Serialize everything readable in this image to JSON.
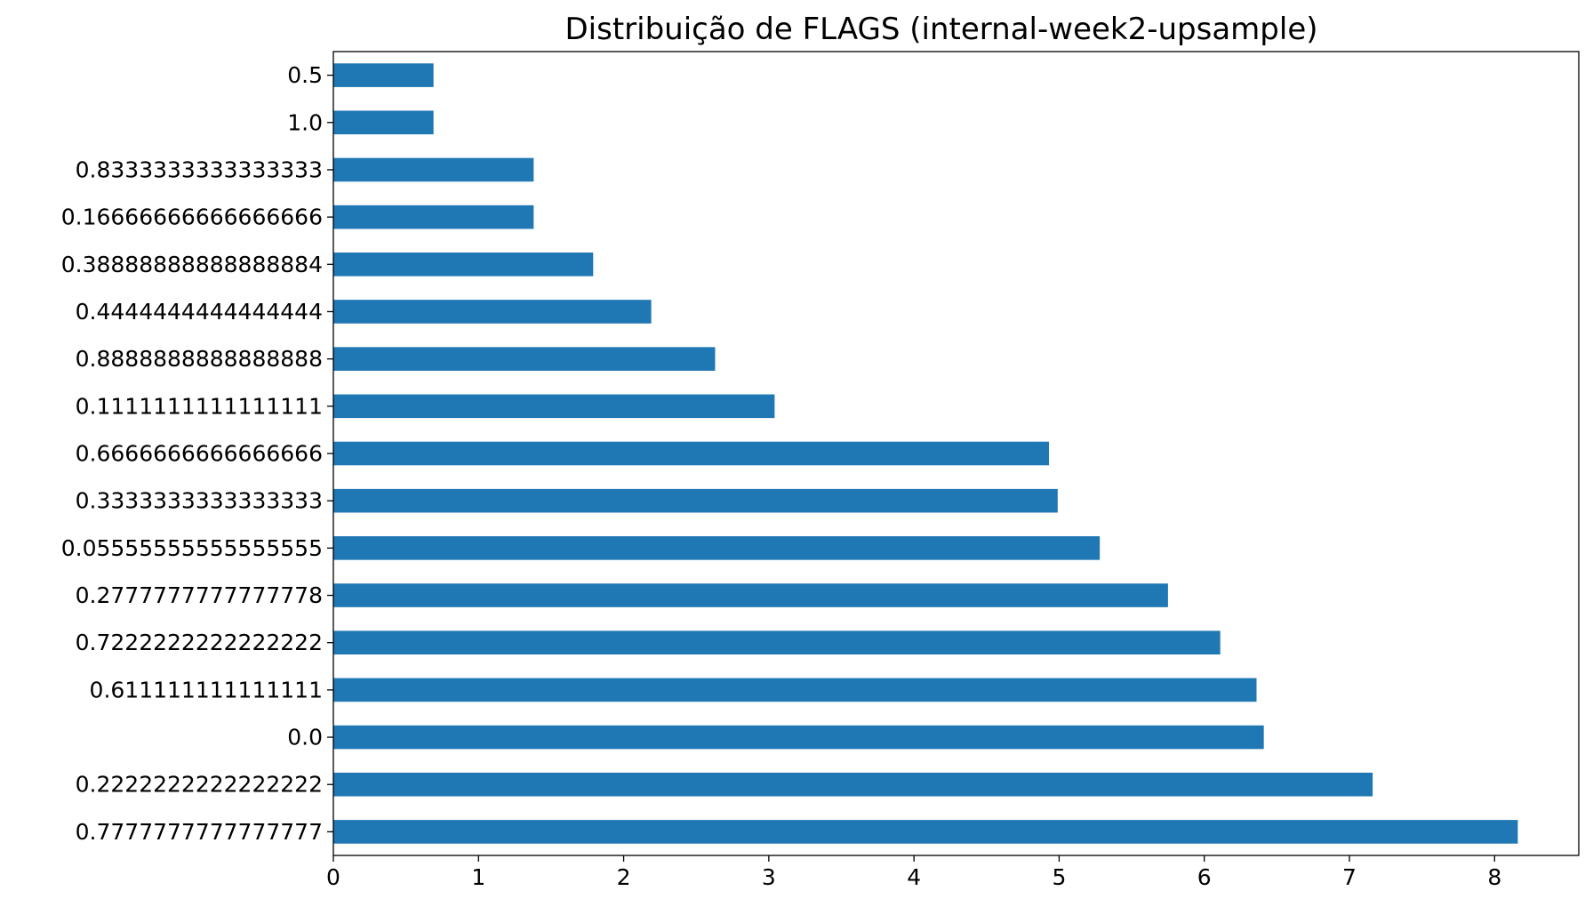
{
  "chart_data": {
    "type": "bar",
    "orientation": "horizontal",
    "title": "Distribuição de FLAGS (internal-week2-upsample)",
    "xlabel": "",
    "ylabel": "",
    "categories": [
      "0.7777777777777777",
      "0.2222222222222222",
      "0.0",
      "0.611111111111111",
      "0.7222222222222222",
      "0.2777777777777778",
      "0.05555555555555555",
      "0.3333333333333333",
      "0.6666666666666666",
      "0.1111111111111111",
      "0.8888888888888888",
      "0.4444444444444444",
      "0.38888888888888884",
      "0.16666666666666666",
      "0.8333333333333333",
      "1.0",
      "0.5"
    ],
    "values": [
      8.16,
      7.16,
      6.41,
      6.36,
      6.11,
      5.75,
      5.28,
      4.99,
      4.93,
      3.04,
      2.63,
      2.19,
      1.79,
      1.38,
      1.38,
      0.69,
      0.69
    ],
    "xlim": [
      0,
      8.58
    ],
    "xticks": [
      "0",
      "1",
      "2",
      "3",
      "4",
      "5",
      "6",
      "7",
      "8"
    ],
    "grid": false,
    "bar_color": "#1f77b4"
  }
}
